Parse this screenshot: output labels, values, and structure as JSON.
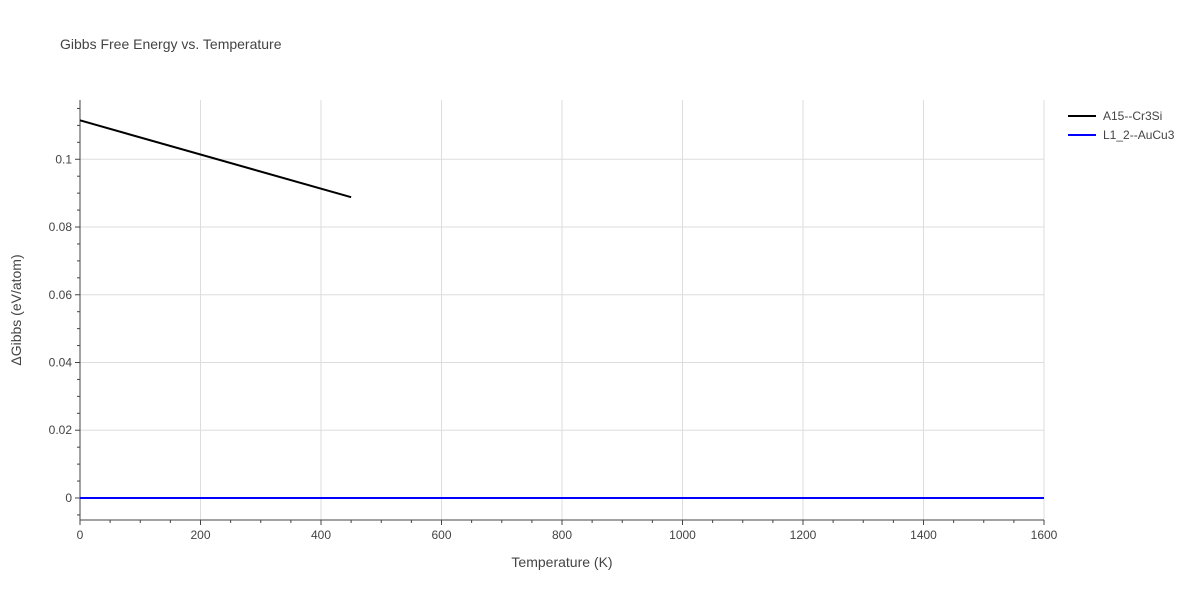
{
  "chart_data": {
    "type": "line",
    "title": "Gibbs Free Energy vs. Temperature",
    "xlabel": "Temperature (K)",
    "ylabel": "ΔGibbs (eV/atom)",
    "xlim": [
      0,
      1600
    ],
    "ylim": [
      -0.0065,
      0.1175
    ],
    "x_ticks": [
      0,
      200,
      400,
      600,
      800,
      1000,
      1200,
      1400,
      1600
    ],
    "x_tick_labels": [
      "0",
      "200",
      "400",
      "600",
      "800",
      "1000",
      "1200",
      "1400",
      "1600"
    ],
    "y_ticks": [
      0,
      0.02,
      0.04,
      0.06,
      0.08,
      0.1
    ],
    "y_tick_labels": [
      "0",
      "0.02",
      "0.04",
      "0.06",
      "0.08",
      "0.1"
    ],
    "grid": true,
    "legend_position": "top-right",
    "series": [
      {
        "name": "A15--Cr3Si",
        "color": "#000000",
        "x": [
          0,
          450
        ],
        "y": [
          0.1115,
          0.0888
        ]
      },
      {
        "name": "L1_2--AuCu3",
        "color": "#0000ff",
        "x": [
          0,
          1600
        ],
        "y": [
          0,
          0
        ]
      }
    ]
  }
}
